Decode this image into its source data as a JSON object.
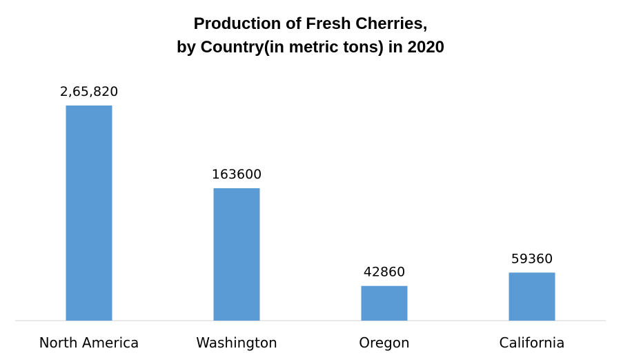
{
  "chart_data": {
    "type": "bar",
    "title_line1": "Production of Fresh Cherries,",
    "title_line2": "by Country(in metric tons) in 2020",
    "categories": [
      "North America",
      "Washington",
      "Oregon",
      "California"
    ],
    "values": [
      265820,
      163600,
      42860,
      59360
    ],
    "data_labels": [
      "2,65,820",
      "163600",
      "42860",
      "59360"
    ],
    "xlabel": "",
    "ylabel": "",
    "ylim": [
      0,
      300000
    ],
    "grid": false,
    "legend": "none",
    "bar_color": "#5B9BD5",
    "axis_color": "#D9D9D9"
  }
}
